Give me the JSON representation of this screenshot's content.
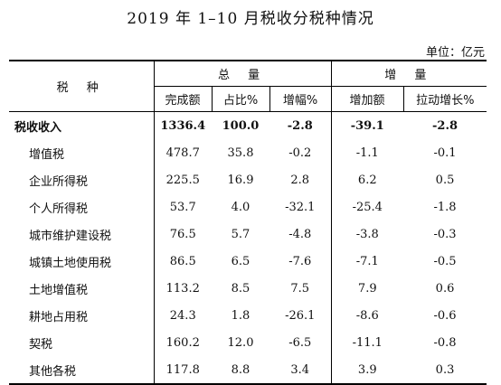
{
  "title": "2019 年 1–10 月税收分税种情况",
  "unit": "单位：亿元",
  "header": {
    "tax_type": "税  种",
    "group_total": "总  量",
    "group_increment": "增  量",
    "cols": [
      "完成额",
      "占比%",
      "增幅%",
      "增加额",
      "拉动增长%"
    ]
  },
  "rows": [
    {
      "name": "税收收入",
      "values": [
        "1336.4",
        "100.0",
        "-2.8",
        "-39.1",
        "-2.8"
      ],
      "bold": true
    },
    {
      "name": "增值税",
      "values": [
        "478.7",
        "35.8",
        "-0.2",
        "-1.1",
        "-0.1"
      ]
    },
    {
      "name": "企业所得税",
      "values": [
        "225.5",
        "16.9",
        "2.8",
        "6.2",
        "0.5"
      ]
    },
    {
      "name": "个人所得税",
      "values": [
        "53.7",
        "4.0",
        "-32.1",
        "-25.4",
        "-1.8"
      ]
    },
    {
      "name": "城市维护建设税",
      "values": [
        "76.5",
        "5.7",
        "-4.8",
        "-3.8",
        "-0.3"
      ]
    },
    {
      "name": "城镇土地使用税",
      "values": [
        "86.5",
        "6.5",
        "-7.6",
        "-7.1",
        "-0.5"
      ]
    },
    {
      "name": "土地增值税",
      "values": [
        "113.2",
        "8.5",
        "7.5",
        "7.9",
        "0.6"
      ]
    },
    {
      "name": "耕地占用税",
      "values": [
        "24.3",
        "1.8",
        "-26.1",
        "-8.6",
        "-0.6"
      ]
    },
    {
      "name": "契税",
      "values": [
        "160.2",
        "12.0",
        "-6.5",
        "-11.1",
        "-0.8"
      ]
    },
    {
      "name": "其他各税",
      "values": [
        "117.8",
        "8.8",
        "3.4",
        "3.9",
        "0.3"
      ]
    }
  ]
}
